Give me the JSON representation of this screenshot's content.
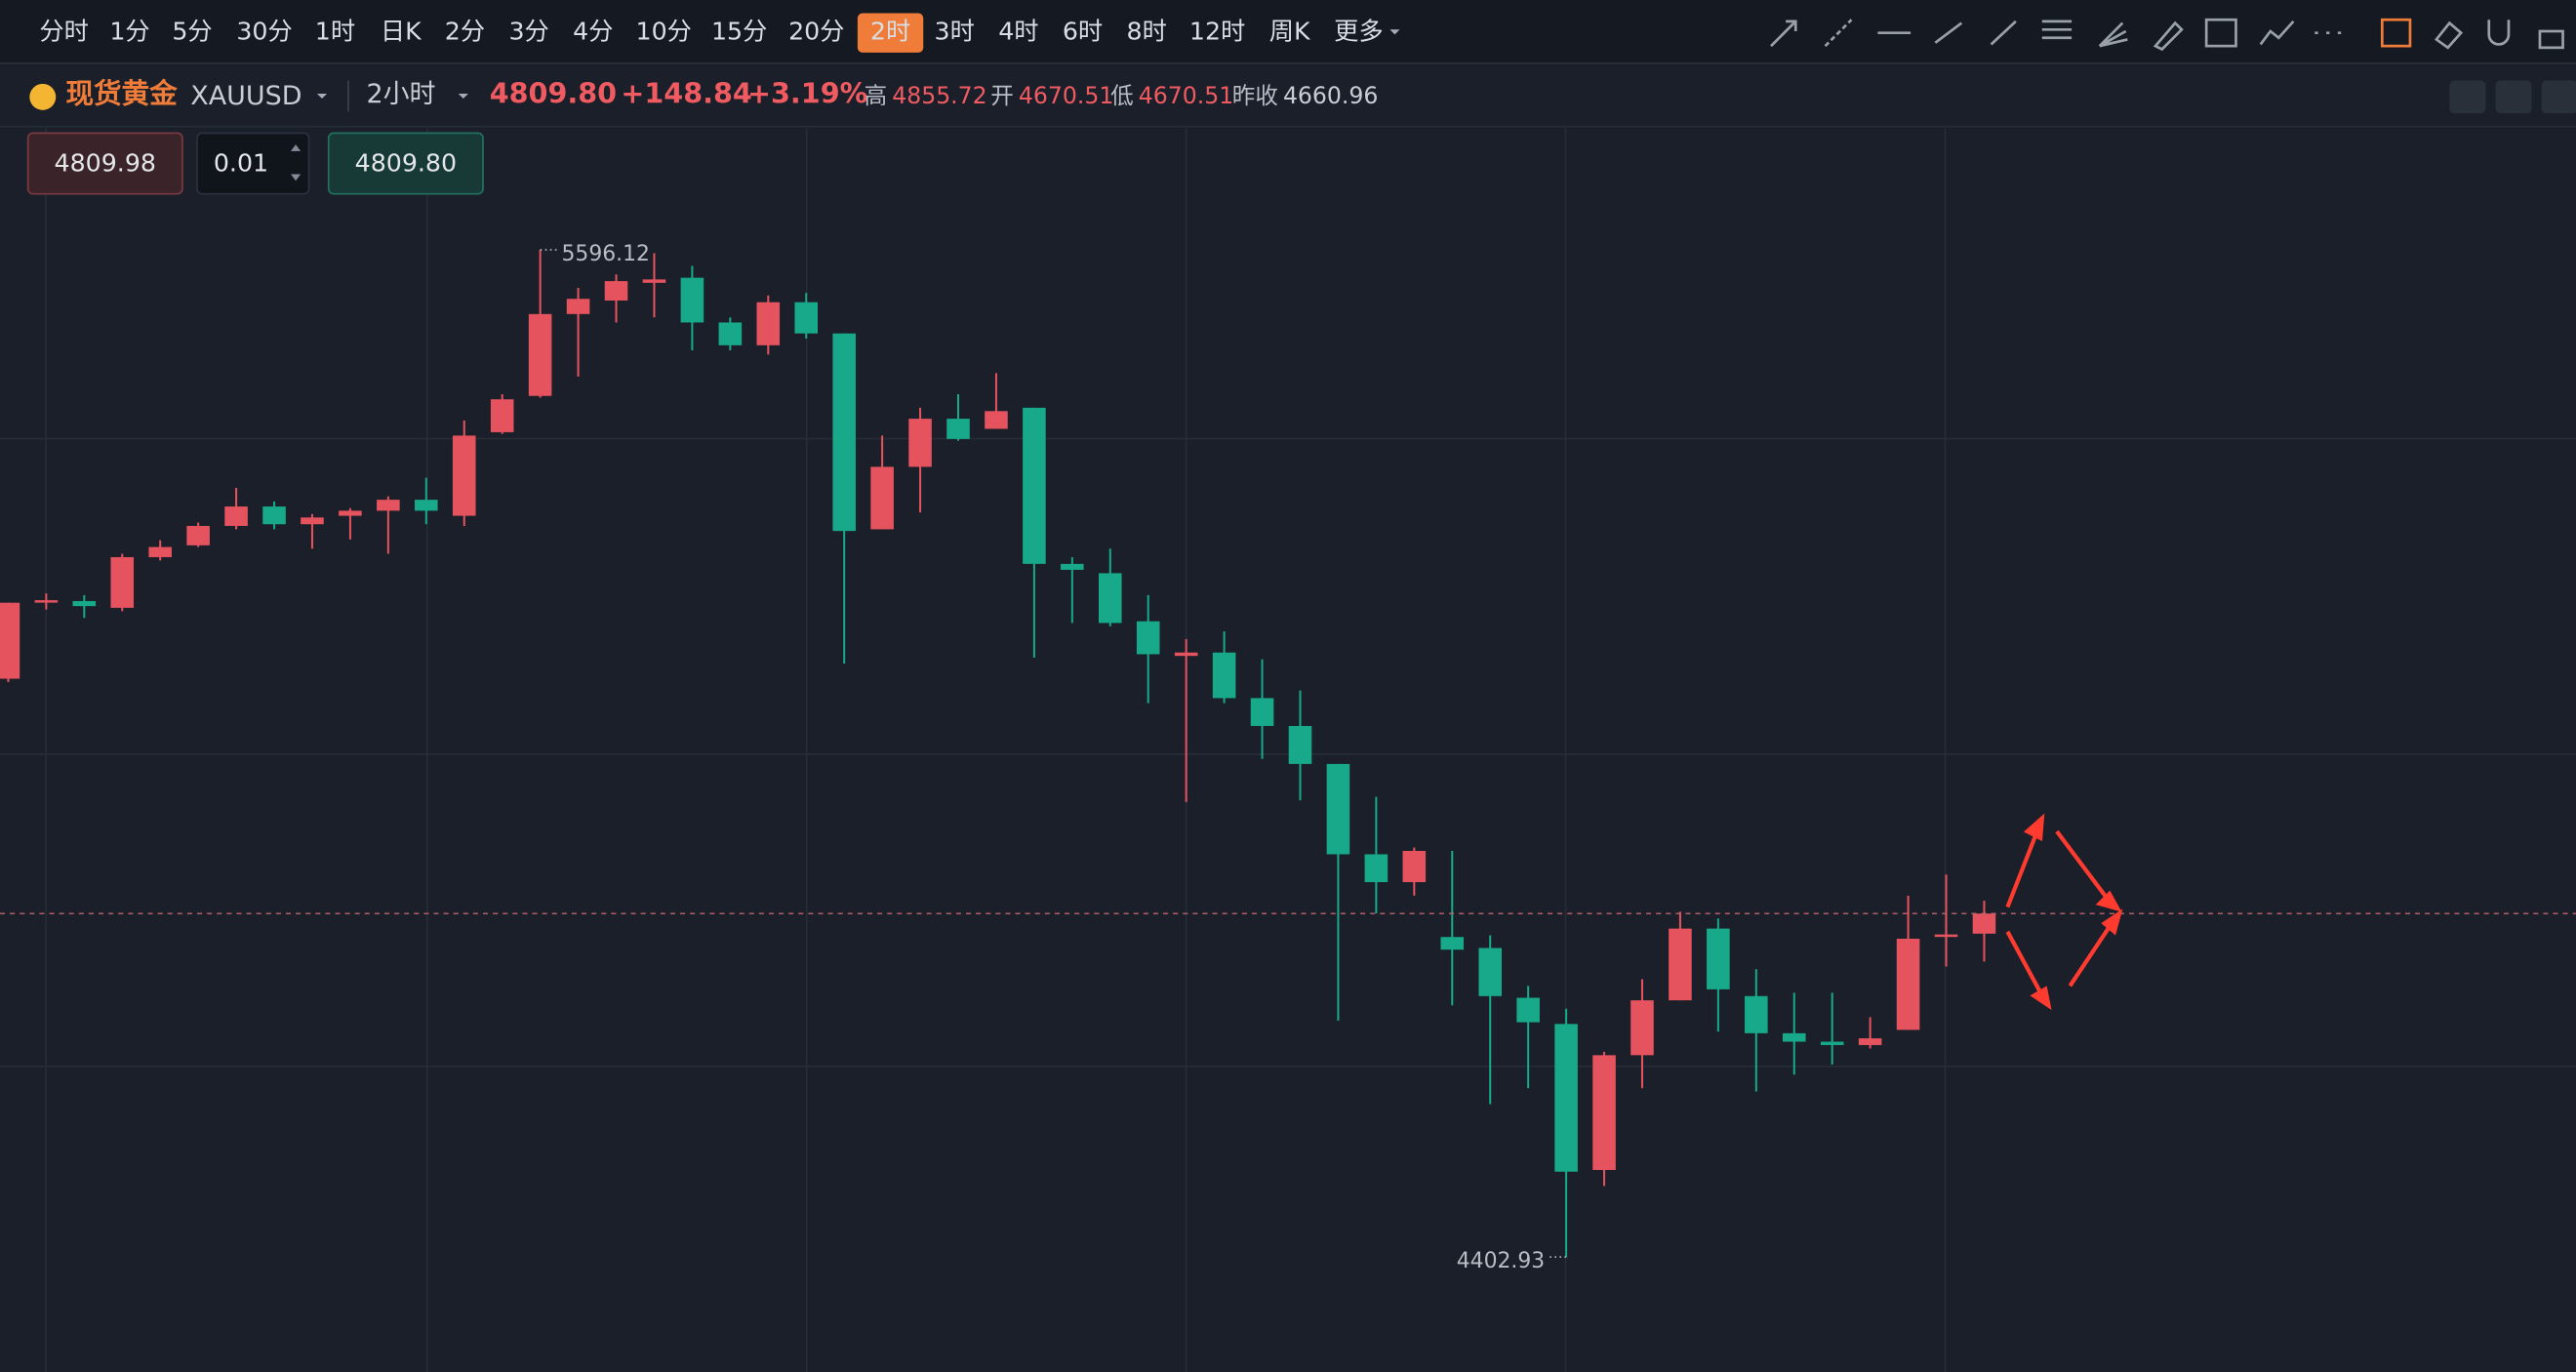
{
  "toolbar": {
    "intervals": [
      "分时",
      "1分",
      "5分",
      "30分",
      "1时",
      "日K",
      "2分",
      "3分",
      "4分",
      "10分",
      "15分",
      "20分",
      "2时",
      "3时",
      "4时",
      "6时",
      "8时",
      "12时",
      "周K"
    ],
    "active": 12,
    "more": "更多"
  },
  "header": {
    "name": "现货黄金",
    "symbol": "XAUUSD",
    "period": "2小时",
    "price": "4809.80",
    "change": "+148.84",
    "change_pct": "+3.19%",
    "high_label": "高",
    "high": "4855.72",
    "open_label": "开",
    "open": "4670.51",
    "low_label": "低",
    "low": "4670.51",
    "prev_label": "昨收",
    "prev": "4660.96"
  },
  "order": {
    "sell": "4809.98",
    "qty": "0.01",
    "buy": "4809.80"
  },
  "chart_data": {
    "type": "candlestick",
    "open": [
      5088,
      5180,
      5180,
      5172,
      5232,
      5246,
      5269,
      5292,
      5271,
      5281,
      5287,
      5300,
      5281,
      5380,
      5423,
      5520,
      5536,
      5557,
      5563,
      5510,
      5483,
      5534,
      5497,
      5265,
      5339,
      5396,
      5384,
      5409,
      5224,
      5213,
      5156,
      5115,
      5119,
      5065,
      5032,
      4987,
      4880,
      4847,
      4782,
      4769,
      4710,
      4679,
      4506,
      4642,
      4707,
      4792,
      4712,
      4668,
      4658,
      4654,
      4672,
      4784,
      4786
    ],
    "close": [
      5178,
      5181,
      5174,
      5232,
      5244,
      5269,
      5292,
      5271,
      5279,
      5287,
      5300,
      5287,
      5376,
      5419,
      5520,
      5538,
      5559,
      5561,
      5510,
      5483,
      5534,
      5497,
      5263,
      5339,
      5396,
      5372,
      5405,
      5224,
      5217,
      5154,
      5117,
      5119,
      5065,
      5032,
      4987,
      4880,
      4847,
      4884,
      4767,
      4712,
      4681,
      4504,
      4642,
      4707,
      4792,
      4720,
      4668,
      4658,
      4654,
      4662,
      4780,
      4785,
      4809.8
    ],
    "high": [
      5178,
      5189,
      5187,
      5236,
      5252,
      5273,
      5314,
      5298,
      5283,
      5290,
      5304,
      5326,
      5394,
      5425,
      5596.12,
      5551,
      5567,
      5592,
      5577,
      5516,
      5542,
      5545,
      5497,
      5376,
      5409,
      5425,
      5450,
      5409,
      5232,
      5242,
      5187,
      5135,
      5144,
      5111,
      5074,
      4987,
      4948,
      4888,
      4884,
      4784,
      4724,
      4697,
      4646,
      4732,
      4812,
      4804,
      4744,
      4716,
      4716,
      4687,
      4831,
      4856,
      4825
    ],
    "low": [
      5084,
      5170,
      5160,
      5168,
      5228,
      5244,
      5265,
      5265,
      5242,
      5253,
      5236,
      5271,
      5269,
      5378,
      5421,
      5446,
      5510,
      5516,
      5477,
      5477,
      5472,
      5491,
      5106,
      5265,
      5285,
      5370,
      5384,
      5113,
      5154,
      5150,
      5059,
      4942,
      5059,
      4993,
      4944,
      4683,
      4810,
      4831,
      4701,
      4584,
      4603,
      4402.93,
      4487,
      4603,
      4707,
      4670,
      4599,
      4619,
      4631,
      4650,
      4672,
      4747,
      4753
    ],
    "ylim": [
      4266.7,
      5740.2
    ],
    "up_color": "#e5535e",
    "down_color": "#17a98a"
  }
}
